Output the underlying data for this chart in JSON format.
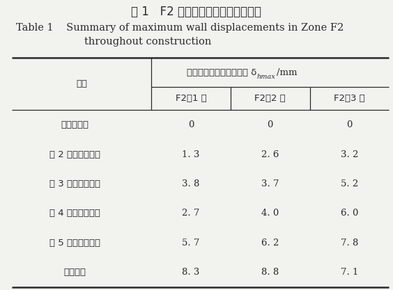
{
  "title_cn": "表 1   F2 区邻地铁侧围护体最大测斜",
  "title_en_line1": "Table 1    Summary of maximum wall displacements in Zone F2",
  "title_en_line2": "throughout construction",
  "col_header_main": "邻地铁侧围护体最大测斜 δ",
  "col_header_sub": "hmax",
  "col_header_unit": "/mm",
  "row_header_cn": "工况",
  "sub_headers": [
    "F2－1 区",
    "F2－2 区",
    "F2－3 区"
  ],
  "rows": [
    [
      "基坑开挖前",
      "0",
      "0",
      "0"
    ],
    [
      "第 2 道钢支撑安装",
      "1. 3",
      "2. 6",
      "3. 2"
    ],
    [
      "第 3 道钢支撑安装",
      "3. 8",
      "3. 7",
      "5. 2"
    ],
    [
      "第 4 道钢支撑安装",
      "2. 7",
      "4. 0",
      "6. 0"
    ],
    [
      "第 5 道钢支撑安装",
      "5. 7",
      "6. 2",
      "7. 8"
    ],
    [
      "底板浇筑",
      "8. 3",
      "8. 8",
      "7. 1"
    ]
  ],
  "bg_color": "#f2f2ee",
  "text_color": "#2a2a2a",
  "line_color": "#2a2a2a",
  "title_cn_fontsize": 12,
  "title_en_fontsize": 10.5,
  "table_fontsize": 9.5
}
